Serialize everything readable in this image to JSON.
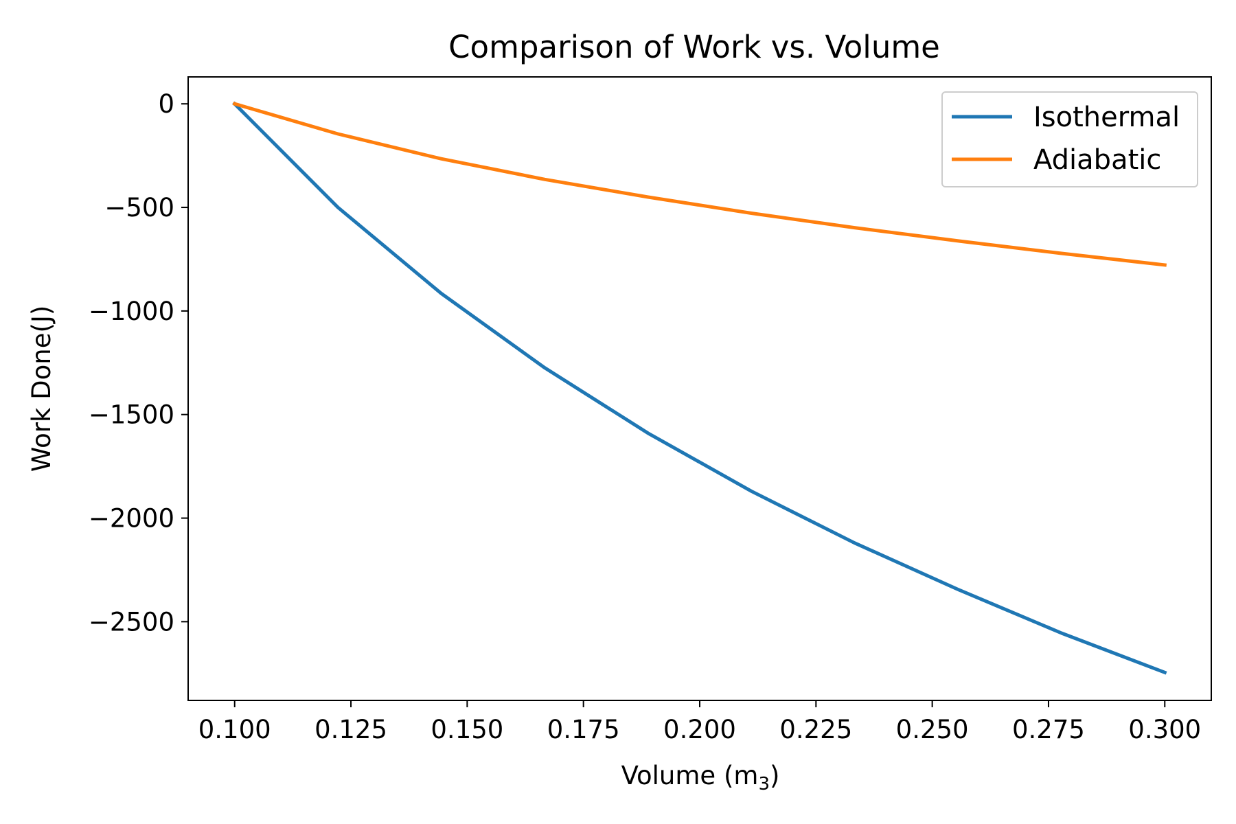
{
  "chart_data": {
    "type": "line",
    "title": "Comparison of Work vs.  Volume",
    "xlabel_main": "Volume (m",
    "xlabel_sub": "3",
    "xlabel_end": ")",
    "ylabel": "Work Done(J)",
    "xlim": [
      0.09,
      0.31
    ],
    "ylim": [
      -2880,
      130
    ],
    "xticks": [
      0.1,
      0.125,
      0.15,
      0.175,
      0.2,
      0.225,
      0.25,
      0.275,
      0.3
    ],
    "xtick_labels": [
      "0.100",
      "0.125",
      "0.150",
      "0.175",
      "0.200",
      "0.225",
      "0.250",
      "0.275",
      "0.300"
    ],
    "yticks": [
      0,
      -500,
      -1000,
      -1500,
      -2000,
      -2500
    ],
    "ytick_labels": [
      "0",
      "−500",
      "−1000",
      "−1500",
      "−2000",
      "−2500"
    ],
    "grid": false,
    "legend_position": "top-right",
    "x": [
      0.1,
      0.1222,
      0.1444,
      0.1667,
      0.1889,
      0.2111,
      0.2333,
      0.2556,
      0.2778,
      0.3
    ],
    "series": [
      {
        "name": "Isothermal",
        "color": "#1f77b4",
        "values": [
          0,
          -500,
          -915,
          -1275,
          -1590,
          -1870,
          -2120,
          -2345,
          -2555,
          -2745
        ]
      },
      {
        "name": "Adiabatic",
        "color": "#ff7f0e",
        "values": [
          0,
          -145,
          -265,
          -365,
          -450,
          -528,
          -598,
          -662,
          -722,
          -778
        ]
      }
    ]
  }
}
